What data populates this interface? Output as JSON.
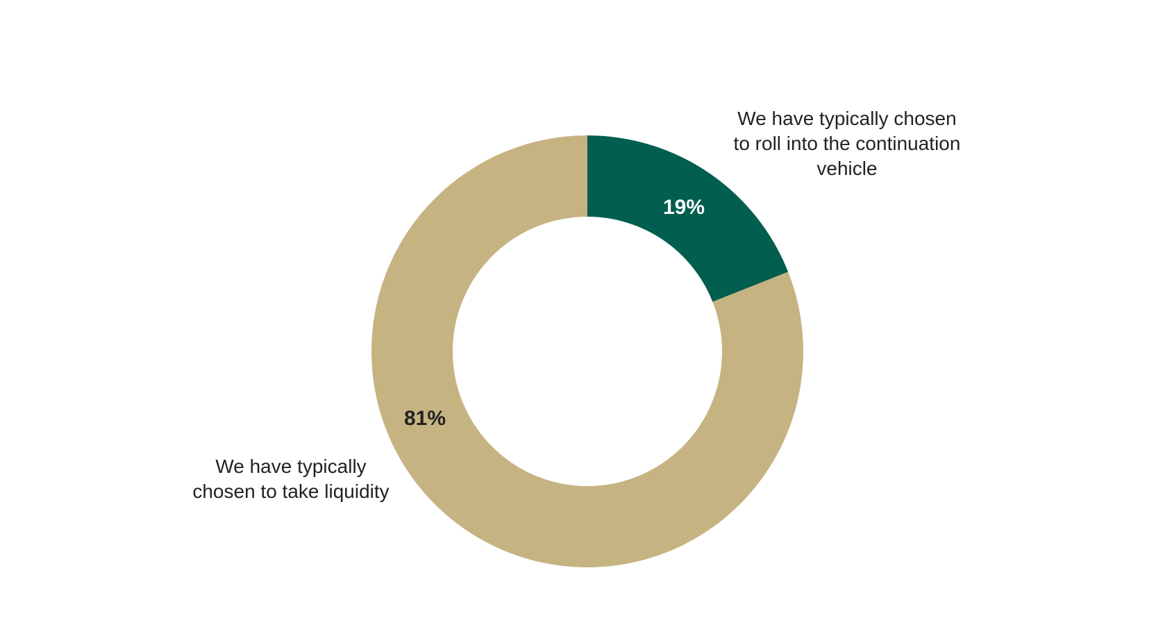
{
  "chart_data": {
    "type": "pie",
    "donut": true,
    "title": "",
    "slices": [
      {
        "label_lines": [
          "We have typically chosen",
          "to roll into the continuation",
          "vehicle"
        ],
        "value": 19,
        "value_label": "19%",
        "color": "#025e4f",
        "value_label_color": "#ffffff"
      },
      {
        "label_lines": [
          "We have typically",
          "chosen to take liquidity"
        ],
        "value": 81,
        "value_label": "81%",
        "color": "#c5b382",
        "value_label_color": "#222222"
      }
    ],
    "start_angle_deg": 0,
    "direction": "clockwise"
  }
}
